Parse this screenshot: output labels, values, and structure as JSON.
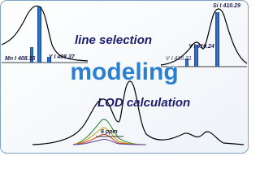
{
  "headings": {
    "top": "line selection",
    "center": "modeling",
    "bottom": "LOD calculation"
  },
  "peak_labels": [
    "Mn I 408.36",
    "Y I 408.37",
    "V I 410.21",
    "Y I 410.24",
    "Si I 410.29"
  ],
  "annotation": "6 ppm"
}
